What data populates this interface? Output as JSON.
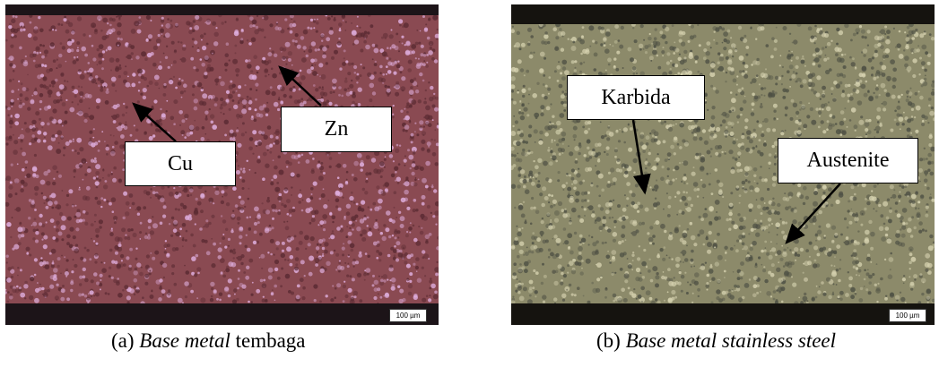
{
  "panels": [
    {
      "caption_prefix": "(a)",
      "caption_italic": "Base metal",
      "caption_rest": "tembaga",
      "labels": [
        "Cu",
        "Zn"
      ],
      "scale_bar": "100 µm",
      "colors": {
        "base": "#8a4a52",
        "dark": "#5a2a32",
        "spot": "#e0b0e0",
        "edge": "#1c1418"
      }
    },
    {
      "caption_prefix": "(b)",
      "caption_italic": "Base metal stainless steel",
      "caption_rest": "",
      "labels": [
        "Karbida",
        "Austenite"
      ],
      "scale_bar": "100 µm",
      "colors": {
        "base": "#8c8a6a",
        "dark": "#4e5044",
        "spot": "#d6d2b0",
        "edge": "#15130f"
      }
    }
  ]
}
